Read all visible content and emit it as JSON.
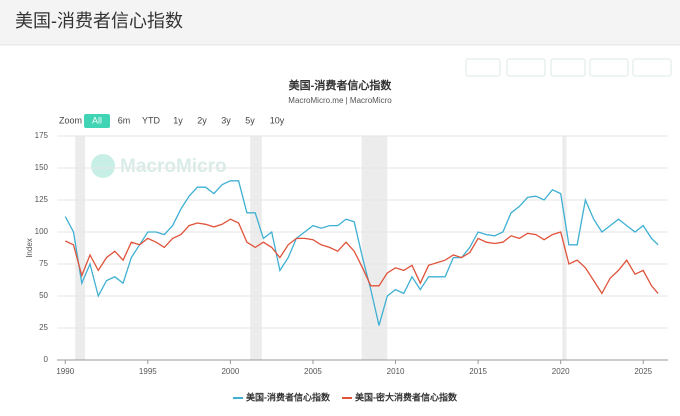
{
  "page_title": "美国-消费者信心指数",
  "chart_data": {
    "type": "line",
    "title": "美国-消费者信心指数",
    "subtitle": "MacroMicro.me | MacroMicro",
    "watermark": "MacroMicro",
    "zoom_label": "Zoom",
    "zoom_options": [
      "All",
      "6m",
      "YTD",
      "1y",
      "2y",
      "3y",
      "5y",
      "10y"
    ],
    "zoom_active": 0,
    "ylabel": "Index",
    "x": [
      1990.0,
      1990.5,
      1991.0,
      1991.5,
      1992.0,
      1992.5,
      1993.0,
      1993.5,
      1994.0,
      1994.5,
      1995.0,
      1995.5,
      1996.0,
      1996.5,
      1997.0,
      1997.5,
      1998.0,
      1998.5,
      1999.0,
      1999.5,
      2000.0,
      2000.5,
      2001.0,
      2001.5,
      2002.0,
      2002.5,
      2003.0,
      2003.5,
      2004.0,
      2004.5,
      2005.0,
      2005.5,
      2006.0,
      2006.5,
      2007.0,
      2007.5,
      2008.0,
      2008.5,
      2009.0,
      2009.5,
      2010.0,
      2010.5,
      2011.0,
      2011.5,
      2012.0,
      2012.5,
      2013.0,
      2013.5,
      2014.0,
      2014.5,
      2015.0,
      2015.5,
      2016.0,
      2016.5,
      2017.0,
      2017.5,
      2018.0,
      2018.5,
      2019.0,
      2019.5,
      2020.0,
      2020.5,
      2021.0,
      2021.5,
      2022.0,
      2022.5,
      2023.0,
      2023.5,
      2024.0,
      2024.5,
      2025.0,
      2025.5,
      2025.9
    ],
    "series": [
      {
        "name": "美国-消费者信心指数",
        "color": "#3fb0d3",
        "values": [
          112,
          100,
          60,
          75,
          50,
          62,
          65,
          60,
          80,
          90,
          100,
          100,
          98,
          105,
          118,
          128,
          135,
          135,
          130,
          137,
          140,
          140,
          115,
          115,
          95,
          100,
          70,
          80,
          95,
          100,
          105,
          103,
          105,
          105,
          110,
          108,
          80,
          55,
          27,
          50,
          55,
          52,
          65,
          55,
          65,
          65,
          65,
          80,
          80,
          88,
          100,
          98,
          97,
          100,
          115,
          120,
          127,
          128,
          125,
          133,
          130,
          90,
          90,
          125,
          110,
          100,
          105,
          110,
          105,
          100,
          105,
          95,
          90
        ]
      },
      {
        "name": "美国-密大消费者信心指数",
        "color": "#e0533b",
        "values": [
          93,
          90,
          66,
          82,
          70,
          80,
          85,
          78,
          92,
          90,
          95,
          92,
          88,
          95,
          98,
          105,
          107,
          106,
          104,
          106,
          110,
          107,
          92,
          88,
          92,
          88,
          80,
          90,
          95,
          95,
          94,
          90,
          88,
          85,
          92,
          85,
          72,
          58,
          58,
          68,
          72,
          70,
          74,
          60,
          74,
          76,
          78,
          82,
          80,
          84,
          95,
          92,
          91,
          92,
          97,
          95,
          99,
          98,
          94,
          98,
          100,
          75,
          78,
          72,
          62,
          52,
          64,
          70,
          78,
          67,
          70,
          58,
          52
        ]
      }
    ],
    "recessions": [
      [
        1990.6,
        1991.2
      ],
      [
        2001.2,
        2001.9
      ],
      [
        2007.95,
        2009.5
      ],
      [
        2020.1,
        2020.35
      ]
    ],
    "xlim": [
      1989.5,
      2026.5
    ],
    "xticks": [
      1990,
      1995,
      2000,
      2005,
      2010,
      2015,
      2020,
      2025
    ],
    "ylim": [
      0,
      175
    ],
    "yticks": [
      0,
      25,
      50,
      75,
      100,
      125,
      150,
      175
    ],
    "grid": true
  }
}
